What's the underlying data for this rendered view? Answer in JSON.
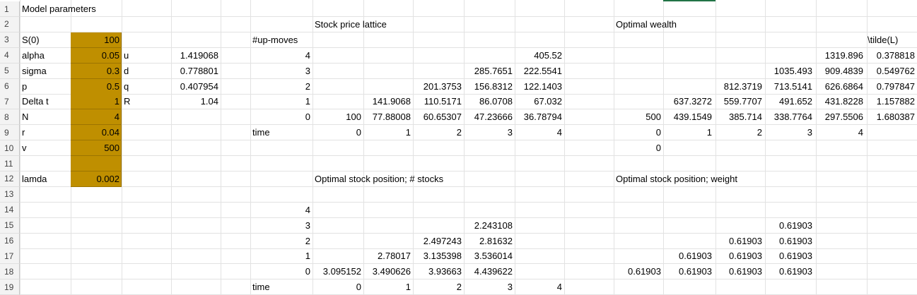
{
  "input_fill_color": "#bf8f00",
  "row_numbers": [
    "1",
    "2",
    "3",
    "4",
    "5",
    "6",
    "7",
    "8",
    "9",
    "10",
    "11",
    "12",
    "13",
    "14",
    "15",
    "16",
    "17",
    "18",
    "19"
  ],
  "cells": [
    {
      "row": 1,
      "col": "A",
      "v": "Model parameters",
      "align": "l"
    },
    {
      "row": 3,
      "col": "A",
      "v": "S(0)",
      "align": "l"
    },
    {
      "row": 3,
      "col": "B",
      "v": "100",
      "align": "r"
    },
    {
      "row": 4,
      "col": "A",
      "v": "alpha",
      "align": "l"
    },
    {
      "row": 4,
      "col": "B",
      "v": "0.05",
      "align": "r"
    },
    {
      "row": 5,
      "col": "A",
      "v": "sigma",
      "align": "l"
    },
    {
      "row": 5,
      "col": "B",
      "v": "0.3",
      "align": "r"
    },
    {
      "row": 6,
      "col": "A",
      "v": "p",
      "align": "l"
    },
    {
      "row": 6,
      "col": "B",
      "v": "0.5",
      "align": "r"
    },
    {
      "row": 7,
      "col": "A",
      "v": "Delta t",
      "align": "l"
    },
    {
      "row": 7,
      "col": "B",
      "v": "1",
      "align": "r"
    },
    {
      "row": 8,
      "col": "A",
      "v": "N",
      "align": "l"
    },
    {
      "row": 8,
      "col": "B",
      "v": "4",
      "align": "r"
    },
    {
      "row": 9,
      "col": "A",
      "v": "r",
      "align": "l"
    },
    {
      "row": 9,
      "col": "B",
      "v": "0.04",
      "align": "r"
    },
    {
      "row": 10,
      "col": "A",
      "v": "v",
      "align": "l"
    },
    {
      "row": 10,
      "col": "B",
      "v": "500",
      "align": "r"
    },
    {
      "row": 12,
      "col": "A",
      "v": "lamda",
      "align": "l"
    },
    {
      "row": 12,
      "col": "B",
      "v": "0.002",
      "align": "r"
    },
    {
      "row": 4,
      "col": "C",
      "v": "u",
      "align": "l"
    },
    {
      "row": 4,
      "col": "D",
      "v": "1.419068",
      "align": "r"
    },
    {
      "row": 5,
      "col": "C",
      "v": "d",
      "align": "l"
    },
    {
      "row": 5,
      "col": "D",
      "v": "0.778801",
      "align": "r"
    },
    {
      "row": 6,
      "col": "C",
      "v": "q",
      "align": "l"
    },
    {
      "row": 6,
      "col": "D",
      "v": "0.407954",
      "align": "r"
    },
    {
      "row": 7,
      "col": "C",
      "v": "R",
      "align": "l"
    },
    {
      "row": 7,
      "col": "D",
      "v": "1.04",
      "align": "r"
    },
    {
      "row": 2,
      "col": "G",
      "v": "Stock price lattice",
      "align": "l"
    },
    {
      "row": 3,
      "col": "E",
      "v": "#up-moves",
      "align": "l"
    },
    {
      "row": 4,
      "col": "F",
      "v": "4",
      "align": "r"
    },
    {
      "row": 5,
      "col": "F",
      "v": "3",
      "align": "r"
    },
    {
      "row": 6,
      "col": "F",
      "v": "2",
      "align": "r"
    },
    {
      "row": 7,
      "col": "F",
      "v": "1",
      "align": "r"
    },
    {
      "row": 8,
      "col": "F",
      "v": "0",
      "align": "r"
    },
    {
      "row": 4,
      "col": "K",
      "v": "405.52",
      "align": "r"
    },
    {
      "row": 5,
      "col": "J",
      "v": "285.7651",
      "align": "r"
    },
    {
      "row": 5,
      "col": "K",
      "v": "222.5541",
      "align": "r"
    },
    {
      "row": 6,
      "col": "I",
      "v": "201.3753",
      "align": "r"
    },
    {
      "row": 6,
      "col": "J",
      "v": "156.8312",
      "align": "r"
    },
    {
      "row": 6,
      "col": "K",
      "v": "122.1403",
      "align": "r"
    },
    {
      "row": 7,
      "col": "H",
      "v": "141.9068",
      "align": "r"
    },
    {
      "row": 7,
      "col": "I",
      "v": "110.5171",
      "align": "r"
    },
    {
      "row": 7,
      "col": "J",
      "v": "86.0708",
      "align": "r"
    },
    {
      "row": 7,
      "col": "K",
      "v": "67.032",
      "align": "r"
    },
    {
      "row": 8,
      "col": "G",
      "v": "100",
      "align": "r"
    },
    {
      "row": 8,
      "col": "H",
      "v": "77.88008",
      "align": "r"
    },
    {
      "row": 8,
      "col": "I",
      "v": "60.65307",
      "align": "r"
    },
    {
      "row": 8,
      "col": "J",
      "v": "47.23666",
      "align": "r"
    },
    {
      "row": 8,
      "col": "K",
      "v": "36.78794",
      "align": "r"
    },
    {
      "row": 9,
      "col": "E",
      "v": "time",
      "align": "l"
    },
    {
      "row": 9,
      "col": "G",
      "v": "0",
      "align": "r"
    },
    {
      "row": 9,
      "col": "H",
      "v": "1",
      "align": "r"
    },
    {
      "row": 9,
      "col": "I",
      "v": "2",
      "align": "r"
    },
    {
      "row": 9,
      "col": "J",
      "v": "3",
      "align": "r"
    },
    {
      "row": 9,
      "col": "K",
      "v": "4",
      "align": "r"
    },
    {
      "row": 2,
      "col": "M",
      "v": "Optimal wealth",
      "align": "l"
    },
    {
      "row": 3,
      "col": "S",
      "v": "\\tilde(L)",
      "align": "l"
    },
    {
      "row": 4,
      "col": "R",
      "v": "1319.896",
      "align": "r"
    },
    {
      "row": 4,
      "col": "S",
      "v": "0.378818",
      "align": "r"
    },
    {
      "row": 5,
      "col": "Q",
      "v": "1035.493",
      "align": "r"
    },
    {
      "row": 5,
      "col": "R",
      "v": "909.4839",
      "align": "r"
    },
    {
      "row": 5,
      "col": "S",
      "v": "0.549762",
      "align": "r"
    },
    {
      "row": 6,
      "col": "P",
      "v": "812.3719",
      "align": "r"
    },
    {
      "row": 6,
      "col": "Q",
      "v": "713.5141",
      "align": "r"
    },
    {
      "row": 6,
      "col": "R",
      "v": "626.6864",
      "align": "r"
    },
    {
      "row": 6,
      "col": "S",
      "v": "0.797847",
      "align": "r"
    },
    {
      "row": 7,
      "col": "O",
      "v": "637.3272",
      "align": "r"
    },
    {
      "row": 7,
      "col": "P",
      "v": "559.7707",
      "align": "r"
    },
    {
      "row": 7,
      "col": "Q",
      "v": "491.652",
      "align": "r"
    },
    {
      "row": 7,
      "col": "R",
      "v": "431.8228",
      "align": "r"
    },
    {
      "row": 7,
      "col": "S",
      "v": "1.157882",
      "align": "r"
    },
    {
      "row": 8,
      "col": "M",
      "v": "500",
      "align": "r"
    },
    {
      "row": 8,
      "col": "N",
      "v": "439.1549",
      "align": "r"
    },
    {
      "row": 8,
      "col": "O",
      "v": "385.714",
      "align": "r"
    },
    {
      "row": 8,
      "col": "P",
      "v": "338.7764",
      "align": "r"
    },
    {
      "row": 8,
      "col": "Q",
      "v": "297.5506",
      "align": "r"
    },
    {
      "row": 8,
      "col": "R",
      "v": "1.680387",
      "align": "r"
    },
    {
      "row": 9,
      "col": "M",
      "v": "0",
      "align": "r"
    },
    {
      "row": 9,
      "col": "N",
      "v": "1",
      "align": "r"
    },
    {
      "row": 9,
      "col": "O",
      "v": "2",
      "align": "r"
    },
    {
      "row": 9,
      "col": "P",
      "v": "3",
      "align": "r"
    },
    {
      "row": 9,
      "col": "Q",
      "v": "4",
      "align": "r"
    },
    {
      "row": 10,
      "col": "M",
      "v": "0",
      "align": "r"
    },
    {
      "row": 12,
      "col": "G",
      "v": "Optimal stock position; # stocks",
      "align": "l"
    },
    {
      "row": 14,
      "col": "F",
      "v": "4",
      "align": "r"
    },
    {
      "row": 15,
      "col": "F",
      "v": "3",
      "align": "r"
    },
    {
      "row": 16,
      "col": "F",
      "v": "2",
      "align": "r"
    },
    {
      "row": 17,
      "col": "F",
      "v": "1",
      "align": "r"
    },
    {
      "row": 18,
      "col": "F",
      "v": "0",
      "align": "r"
    },
    {
      "row": 15,
      "col": "J",
      "v": "2.243108",
      "align": "r"
    },
    {
      "row": 16,
      "col": "I",
      "v": "2.497243",
      "align": "r"
    },
    {
      "row": 16,
      "col": "J",
      "v": "2.81632",
      "align": "r"
    },
    {
      "row": 17,
      "col": "H",
      "v": "2.78017",
      "align": "r"
    },
    {
      "row": 17,
      "col": "I",
      "v": "3.135398",
      "align": "r"
    },
    {
      "row": 17,
      "col": "J",
      "v": "3.536014",
      "align": "r"
    },
    {
      "row": 18,
      "col": "G",
      "v": "3.095152",
      "align": "r"
    },
    {
      "row": 18,
      "col": "H",
      "v": "3.490626",
      "align": "r"
    },
    {
      "row": 18,
      "col": "I",
      "v": "3.93663",
      "align": "r"
    },
    {
      "row": 18,
      "col": "J",
      "v": "4.439622",
      "align": "r"
    },
    {
      "row": 19,
      "col": "E",
      "v": "time",
      "align": "l"
    },
    {
      "row": 19,
      "col": "G",
      "v": "0",
      "align": "r"
    },
    {
      "row": 19,
      "col": "H",
      "v": "1",
      "align": "r"
    },
    {
      "row": 19,
      "col": "I",
      "v": "2",
      "align": "r"
    },
    {
      "row": 19,
      "col": "J",
      "v": "3",
      "align": "r"
    },
    {
      "row": 19,
      "col": "K",
      "v": "4",
      "align": "r"
    },
    {
      "row": 12,
      "col": "M",
      "v": "Optimal stock position; weight",
      "align": "l"
    },
    {
      "row": 15,
      "col": "Q",
      "v": "0.61903",
      "align": "r"
    },
    {
      "row": 16,
      "col": "P",
      "v": "0.61903",
      "align": "r"
    },
    {
      "row": 16,
      "col": "Q",
      "v": "0.61903",
      "align": "r"
    },
    {
      "row": 17,
      "col": "O",
      "v": "0.61903",
      "align": "r"
    },
    {
      "row": 17,
      "col": "P",
      "v": "0.61903",
      "align": "r"
    },
    {
      "row": 17,
      "col": "Q",
      "v": "0.61903",
      "align": "r"
    },
    {
      "row": 18,
      "col": "N",
      "v": "0.61903",
      "align": "r"
    },
    {
      "row": 18,
      "col": "O",
      "v": "0.61903",
      "align": "r"
    },
    {
      "row": 18,
      "col": "P",
      "v": "0.61903",
      "align": "r"
    },
    {
      "row": 18,
      "col": "Q",
      "v": "0.61903",
      "align": "r"
    }
  ]
}
